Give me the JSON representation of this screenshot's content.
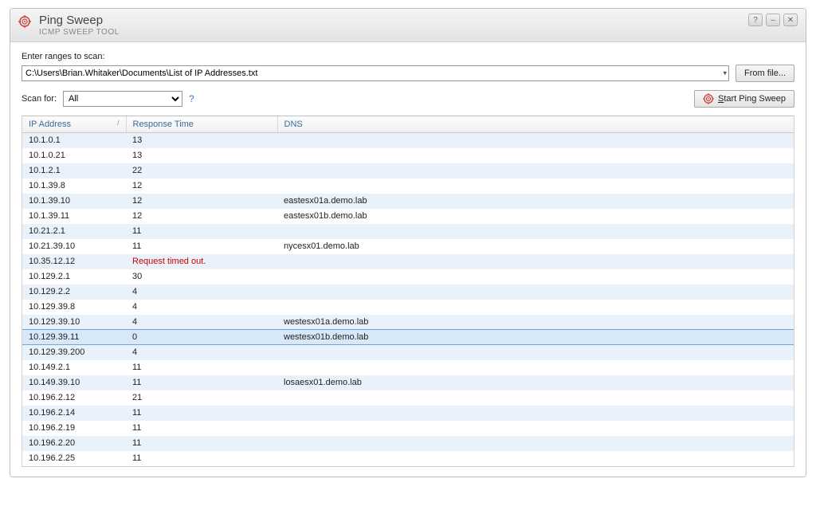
{
  "window": {
    "title": "Ping Sweep",
    "subtitle": "ICMP SWEEP TOOL"
  },
  "icons": {
    "app_color": "#d23a3a",
    "app_name": "target-icon"
  },
  "controls": {
    "help_label": "?",
    "minimize_label": "–",
    "restore_label": "❐",
    "close_label": "✕"
  },
  "ranges": {
    "label": "Enter ranges to scan:",
    "value": "C:\\Users\\Brian.Whitaker\\Documents\\List of IP Addresses.txt",
    "from_file_label": "From file..."
  },
  "scan": {
    "label": "Scan for:",
    "selected": "All",
    "options": [
      "All"
    ],
    "help_glyph": "?",
    "start_label": "Start Ping Sweep"
  },
  "table": {
    "columns": {
      "ip": "IP Address",
      "rt": "Response Time",
      "dns": "DNS"
    },
    "sort_indicator": "/",
    "selected_index": 13,
    "rows": [
      {
        "ip": "10.1.0.1",
        "rt": "13",
        "dns": ""
      },
      {
        "ip": "10.1.0.21",
        "rt": "13",
        "dns": ""
      },
      {
        "ip": "10.1.2.1",
        "rt": "22",
        "dns": ""
      },
      {
        "ip": "10.1.39.8",
        "rt": "12",
        "dns": ""
      },
      {
        "ip": "10.1.39.10",
        "rt": "12",
        "dns": "eastesx01a.demo.lab"
      },
      {
        "ip": "10.1.39.11",
        "rt": "12",
        "dns": "eastesx01b.demo.lab"
      },
      {
        "ip": "10.21.2.1",
        "rt": "11",
        "dns": ""
      },
      {
        "ip": "10.21.39.10",
        "rt": "11",
        "dns": "nycesx01.demo.lab"
      },
      {
        "ip": "10.35.12.12",
        "rt": "Request timed out.",
        "dns": "",
        "error": true
      },
      {
        "ip": "10.129.2.1",
        "rt": "30",
        "dns": ""
      },
      {
        "ip": "10.129.2.2",
        "rt": "4",
        "dns": ""
      },
      {
        "ip": "10.129.39.8",
        "rt": "4",
        "dns": ""
      },
      {
        "ip": "10.129.39.10",
        "rt": "4",
        "dns": "westesx01a.demo.lab"
      },
      {
        "ip": "10.129.39.11",
        "rt": "0",
        "dns": "westesx01b.demo.lab"
      },
      {
        "ip": "10.129.39.200",
        "rt": "4",
        "dns": ""
      },
      {
        "ip": "10.149.2.1",
        "rt": "11",
        "dns": ""
      },
      {
        "ip": "10.149.39.10",
        "rt": "11",
        "dns": "losaesx01.demo.lab"
      },
      {
        "ip": "10.196.2.12",
        "rt": "21",
        "dns": ""
      },
      {
        "ip": "10.196.2.14",
        "rt": "11",
        "dns": ""
      },
      {
        "ip": "10.196.2.19",
        "rt": "11",
        "dns": ""
      },
      {
        "ip": "10.196.2.20",
        "rt": "11",
        "dns": ""
      },
      {
        "ip": "10.196.2.25",
        "rt": "11",
        "dns": ""
      }
    ]
  },
  "colors": {
    "stripe_light": "#e9f2fb",
    "stripe_white": "#ffffff",
    "selected_bg": "#d7e8f8",
    "selected_border": "#6fa8dc",
    "error_text": "#cc0000",
    "header_text": "#3a6a9a",
    "accent_icon": "#d23a3a"
  }
}
